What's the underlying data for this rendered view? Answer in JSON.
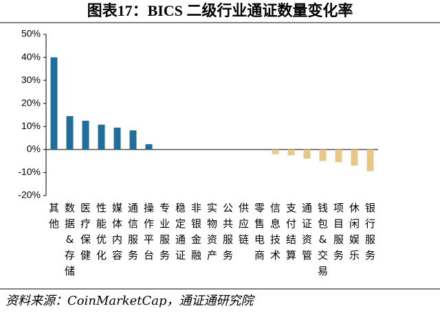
{
  "chart_data": {
    "type": "bar",
    "title": "图表17：BICS 二级行业通证数量变化率",
    "source": "资料来源：CoinMarketCap，通证通研究院",
    "categories": [
      "其他",
      "数据&存储",
      "医疗保健",
      "性能优化",
      "媒体内容",
      "通信服务",
      "操作平台",
      "专业服务",
      "稳定通证",
      "非银金融",
      "实物资产",
      "公共服务",
      "供应链",
      "零售电商",
      "信息技术",
      "支付结算",
      "通证资管",
      "钱包&交易",
      "项目服务",
      "休闲娱乐",
      "银行服务"
    ],
    "values": [
      40,
      14.5,
      12.5,
      10.8,
      9.5,
      8.3,
      2.3,
      0,
      0,
      0,
      0,
      0,
      0,
      0,
      -2,
      -2.5,
      -4,
      -5,
      -5.5,
      -7,
      -9.5
    ],
    "positive_color": "#1f6e9c",
    "negative_color": "#e8c88a",
    "ylim": [
      -20,
      50
    ],
    "yticks": [
      {
        "value": -20,
        "label": "-20%"
      },
      {
        "value": -10,
        "label": "-10%"
      },
      {
        "value": 0,
        "label": "0%"
      },
      {
        "value": 10,
        "label": "10%"
      },
      {
        "value": 20,
        "label": "20%"
      },
      {
        "value": 30,
        "label": "30%"
      },
      {
        "value": 40,
        "label": "40%"
      },
      {
        "value": 50,
        "label": "50%"
      }
    ],
    "grid": false
  }
}
